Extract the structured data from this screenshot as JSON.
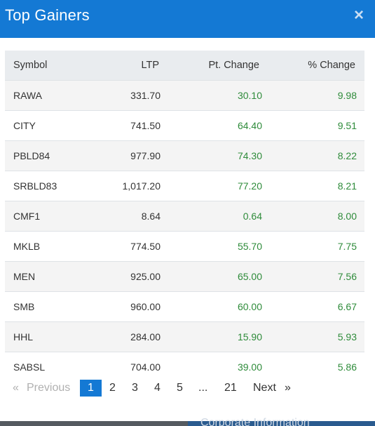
{
  "modal": {
    "title": "Top Gainers",
    "close_label": "×"
  },
  "table": {
    "headers": {
      "symbol": "Symbol",
      "ltp": "LTP",
      "pt_change": "Pt. Change",
      "pct_change": "% Change"
    },
    "rows": [
      {
        "symbol": "RAWA",
        "ltp": "331.70",
        "pt_change": "30.10",
        "pct_change": "9.98"
      },
      {
        "symbol": "CITY",
        "ltp": "741.50",
        "pt_change": "64.40",
        "pct_change": "9.51"
      },
      {
        "symbol": "PBLD84",
        "ltp": "977.90",
        "pt_change": "74.30",
        "pct_change": "8.22"
      },
      {
        "symbol": "SRBLD83",
        "ltp": "1,017.20",
        "pt_change": "77.20",
        "pct_change": "8.21"
      },
      {
        "symbol": "CMF1",
        "ltp": "8.64",
        "pt_change": "0.64",
        "pct_change": "8.00"
      },
      {
        "symbol": "MKLB",
        "ltp": "774.50",
        "pt_change": "55.70",
        "pct_change": "7.75"
      },
      {
        "symbol": "MEN",
        "ltp": "925.00",
        "pt_change": "65.00",
        "pct_change": "7.56"
      },
      {
        "symbol": "SMB",
        "ltp": "960.00",
        "pt_change": "60.00",
        "pct_change": "6.67"
      },
      {
        "symbol": "HHL",
        "ltp": "284.00",
        "pt_change": "15.90",
        "pct_change": "5.93"
      },
      {
        "symbol": "SABSL",
        "ltp": "704.00",
        "pt_change": "39.00",
        "pct_change": "5.86"
      }
    ]
  },
  "pagination": {
    "prev_arrow": "«",
    "prev_label": "Previous",
    "pages": [
      "1",
      "2",
      "3",
      "4",
      "5"
    ],
    "ellipsis": "...",
    "last_page": "21",
    "next_label": "Next",
    "next_arrow": "»",
    "current_page": "1"
  },
  "footer": {
    "text": "Corporate Information"
  },
  "colors": {
    "header_blue": "#1479d4",
    "positive_green": "#2e8b3a"
  }
}
